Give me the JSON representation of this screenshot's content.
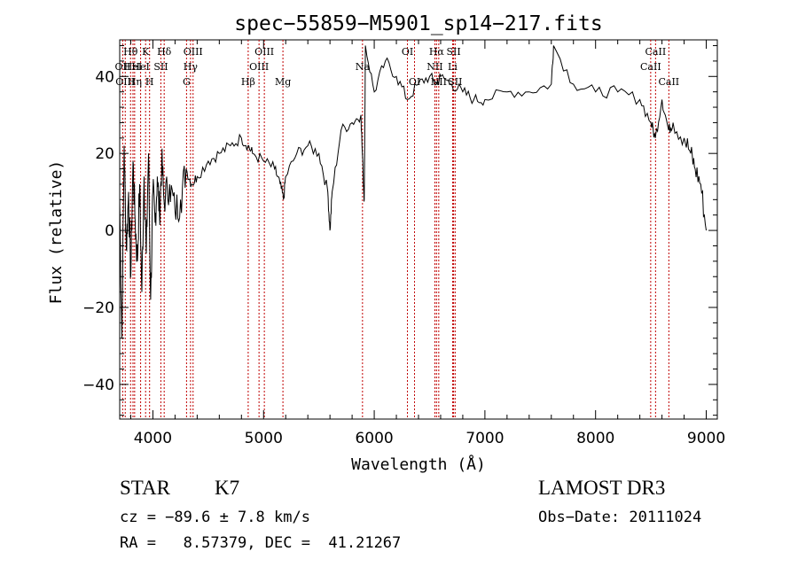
{
  "chart_data": {
    "type": "line",
    "title": "spec−55859−M5901_sp14−217.fits",
    "xlabel": "Wavelength (Å)",
    "ylabel": "Flux (relative)",
    "xlim": [
      3700,
      9100
    ],
    "ylim": [
      -49,
      49.5
    ],
    "xticks": [
      4000,
      5000,
      6000,
      7000,
      8000,
      9000
    ],
    "xtick_labels": [
      "4000",
      "5000",
      "6000",
      "7000",
      "8000",
      "9000"
    ],
    "yticks": [
      -40,
      -20,
      0,
      20,
      40
    ],
    "ytick_labels": [
      "−40",
      "−20",
      "0",
      "20",
      "40"
    ],
    "grid": false,
    "line_color": "#000000",
    "marker_color": "#c00000",
    "series": [
      {
        "name": "spectrum",
        "x": [
          3700,
          3720,
          3740,
          3760,
          3780,
          3800,
          3820,
          3840,
          3860,
          3880,
          3900,
          3920,
          3940,
          3960,
          3980,
          4000,
          4020,
          4040,
          4060,
          4080,
          4100,
          4150,
          4200,
          4250,
          4300,
          4350,
          4400,
          4500,
          4600,
          4700,
          4800,
          4860,
          4900,
          5000,
          5100,
          5150,
          5180,
          5200,
          5300,
          5400,
          5500,
          5580,
          5600,
          5620,
          5700,
          5800,
          5880,
          5900,
          5910,
          5920,
          6000,
          6100,
          6200,
          6300,
          6400,
          6500,
          6560,
          6600,
          6700,
          6800,
          6900,
          7000,
          7200,
          7400,
          7600,
          7620,
          7800,
          8000,
          8200,
          8400,
          8500,
          8540,
          8600,
          8660,
          8700,
          8800,
          8860,
          8900,
          8950,
          9000
        ],
        "y": [
          8,
          -28,
          22,
          -5,
          10,
          -12,
          18,
          2,
          -8,
          12,
          -16,
          14,
          -6,
          20,
          -18,
          10,
          2,
          14,
          4,
          18,
          8,
          12,
          5,
          8,
          16,
          12,
          14,
          18,
          20,
          22,
          24,
          22,
          20,
          18,
          16,
          12,
          8,
          14,
          20,
          22,
          20,
          10,
          0,
          10,
          26,
          28,
          30,
          14,
          8,
          48,
          36,
          44,
          40,
          34,
          38,
          40,
          38,
          40,
          38,
          36,
          34,
          34,
          36,
          36,
          38,
          48,
          38,
          36,
          36,
          34,
          28,
          24,
          34,
          26,
          28,
          24,
          20,
          16,
          12,
          0
        ]
      }
    ],
    "lines": [
      {
        "wavelength": 3727,
        "labels": [
          "OII"
        ],
        "tier": 2
      },
      {
        "wavelength": 3750,
        "labels": [
          "OIII"
        ],
        "tier": 3
      },
      {
        "wavelength": 3798,
        "labels": [
          "Hθ"
        ],
        "tier": 1
      },
      {
        "wavelength": 3820,
        "labels": [
          "HeI"
        ],
        "tier": 2
      },
      {
        "wavelength": 3835,
        "labels": [
          "Hη"
        ],
        "tier": 3
      },
      {
        "wavelength": 3889,
        "labels": [
          "HeI"
        ],
        "tier": 2
      },
      {
        "wavelength": 3934,
        "labels": [
          "K"
        ],
        "tier": 1
      },
      {
        "wavelength": 3970,
        "labels": [
          "H"
        ],
        "tier": 3
      },
      {
        "wavelength": 4072,
        "labels": [
          "SII"
        ],
        "tier": 2
      },
      {
        "wavelength": 4102,
        "labels": [
          "Hδ"
        ],
        "tier": 1
      },
      {
        "wavelength": 4304,
        "labels": [
          "G"
        ],
        "tier": 3
      },
      {
        "wavelength": 4340,
        "labels": [
          "Hγ"
        ],
        "tier": 2
      },
      {
        "wavelength": 4363,
        "labels": [
          "OIII"
        ],
        "tier": 1
      },
      {
        "wavelength": 4861,
        "labels": [
          "Hβ"
        ],
        "tier": 3
      },
      {
        "wavelength": 4959,
        "labels": [
          "OIII"
        ],
        "tier": 2
      },
      {
        "wavelength": 5007,
        "labels": [
          "OIII"
        ],
        "tier": 1
      },
      {
        "wavelength": 5175,
        "labels": [
          "Mg"
        ],
        "tier": 3
      },
      {
        "wavelength": 5894,
        "labels": [
          "Na"
        ],
        "tier": 2
      },
      {
        "wavelength": 6300,
        "labels": [
          "OI"
        ],
        "tier": 1
      },
      {
        "wavelength": 6364,
        "labels": [
          "OI"
        ],
        "tier": 3
      },
      {
        "wavelength": 6548,
        "labels": [
          "NII"
        ],
        "tier": 2
      },
      {
        "wavelength": 6563,
        "labels": [
          "Hα"
        ],
        "tier": 1
      },
      {
        "wavelength": 6583,
        "labels": [
          "NII"
        ],
        "tier": 3
      },
      {
        "wavelength": 6708,
        "labels": [
          "Li"
        ],
        "tier": 2
      },
      {
        "wavelength": 6717,
        "labels": [
          "SII"
        ],
        "tier": 1
      },
      {
        "wavelength": 6731,
        "labels": [
          "SII"
        ],
        "tier": 3
      },
      {
        "wavelength": 8498,
        "labels": [
          "CaII"
        ],
        "tier": 2
      },
      {
        "wavelength": 8542,
        "labels": [
          "CaII"
        ],
        "tier": 1
      },
      {
        "wavelength": 8662,
        "labels": [
          "CaII"
        ],
        "tier": 3
      }
    ]
  },
  "info": {
    "class_label": "STAR",
    "subclass": "K7",
    "survey": "LAMOST DR3",
    "cz": "cz = −89.6 ± 7.8 km/s",
    "obs_date": "Obs−Date: 20111024",
    "coords": "RA =   8.57379, DEC =  41.21267"
  }
}
